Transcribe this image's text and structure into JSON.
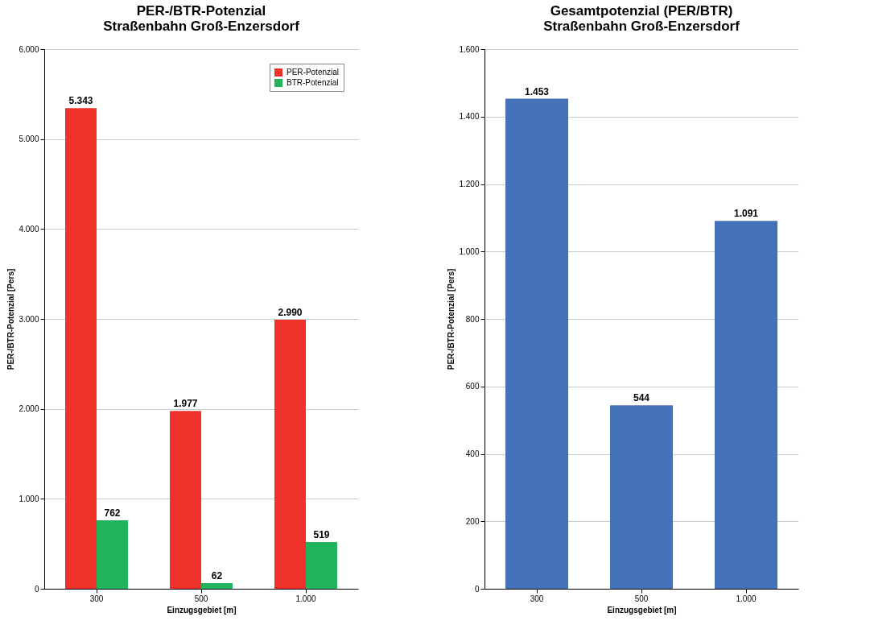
{
  "chart_data": [
    {
      "type": "bar",
      "title": "PER-/BTR-Potenzial\nStraßenbahn Groß-Enzersdorf",
      "xlabel": "Einzugsgebiet [m]",
      "ylabel": "PER-/BTR-Potenzial [Pers]",
      "categories": [
        "300",
        "500",
        "1.000"
      ],
      "series": [
        {
          "name": "PER-Potenzial",
          "color": "#ee3129",
          "values": [
            5343,
            1977,
            2990
          ],
          "value_labels": [
            "5.343",
            "1.977",
            "2.990"
          ]
        },
        {
          "name": "BTR-Potenzial",
          "color": "#22b45c",
          "values": [
            762,
            62,
            519
          ],
          "value_labels": [
            "762",
            "62",
            "519"
          ]
        }
      ],
      "ylim": [
        0,
        6000
      ],
      "yticks": [
        {
          "value": 0,
          "label": "0"
        },
        {
          "value": 1000,
          "label": "1.000"
        },
        {
          "value": 2000,
          "label": "2.000"
        },
        {
          "value": 3000,
          "label": "3.000"
        },
        {
          "value": 4000,
          "label": "4.000"
        },
        {
          "value": 5000,
          "label": "5.000"
        },
        {
          "value": 6000,
          "label": "6.000"
        }
      ],
      "grid": "y",
      "legend": "top right"
    },
    {
      "type": "bar",
      "title": "Gesamtpotenzial (PER/BTR)\nStraßenbahn Groß-Enzersdorf",
      "xlabel": "Einzugsgebiet [m]",
      "ylabel": "PER-/BTR-Potenzial [Pers]",
      "categories": [
        "300",
        "500",
        "1.000"
      ],
      "series": [
        {
          "color": "#4472b9",
          "values": [
            1453,
            544,
            1091
          ],
          "value_labels": [
            "1.453",
            "544",
            "1.091"
          ]
        }
      ],
      "ylim": [
        0,
        1600
      ],
      "yticks": [
        {
          "value": 0,
          "label": "0"
        },
        {
          "value": 200,
          "label": "200"
        },
        {
          "value": 400,
          "label": "400"
        },
        {
          "value": 600,
          "label": "600"
        },
        {
          "value": 800,
          "label": "800"
        },
        {
          "value": 1000,
          "label": "1.000"
        },
        {
          "value": 1200,
          "label": "1.200"
        },
        {
          "value": 1400,
          "label": "1.400"
        },
        {
          "value": 1600,
          "label": "1.600"
        }
      ],
      "grid": "y",
      "legend": false
    }
  ]
}
